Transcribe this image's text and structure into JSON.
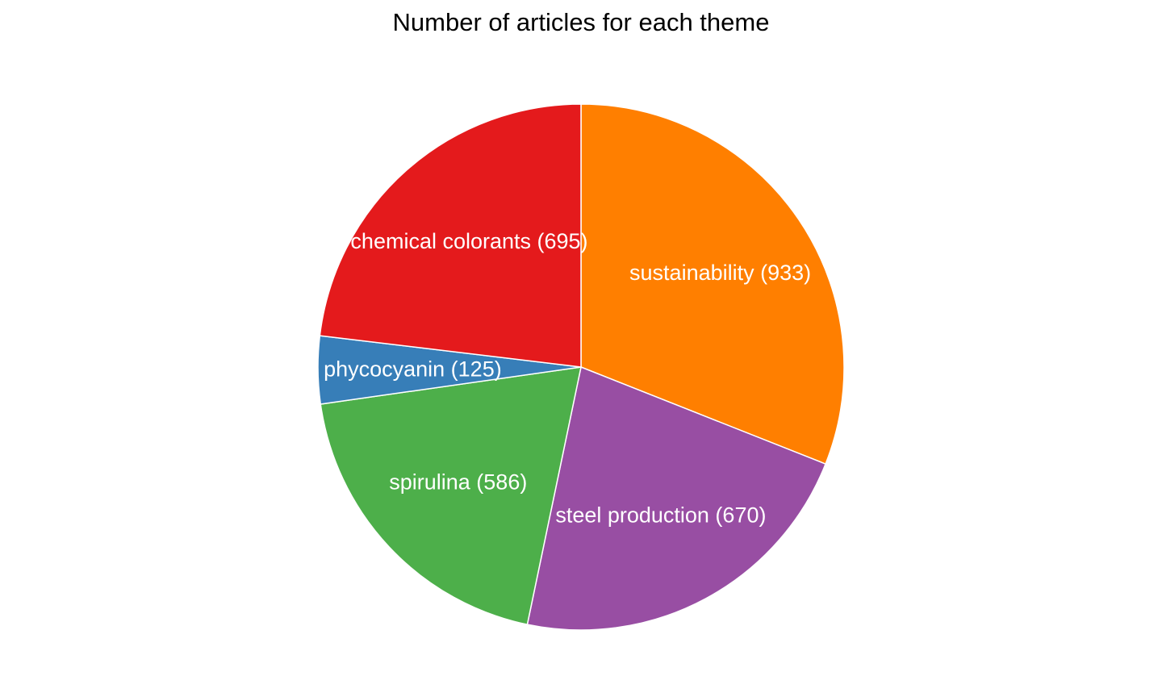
{
  "chart_data": {
    "type": "pie",
    "title": "Number of articles for each theme",
    "slices": [
      {
        "label": "sustainability (933)",
        "name": "sustainability",
        "value": 933,
        "color": "#FF7F00"
      },
      {
        "label": "steel production (670)",
        "name": "steel production",
        "value": 670,
        "color": "#984EA3"
      },
      {
        "label": "spirulina (586)",
        "name": "spirulina",
        "value": 586,
        "color": "#4DAF4A"
      },
      {
        "label": "phycocyanin (125)",
        "name": "phycocyanin",
        "value": 125,
        "color": "#377EB8"
      },
      {
        "label": "chemical colorants (695)",
        "name": "chemical colorants",
        "value": 695,
        "color": "#E41A1C"
      }
    ],
    "start": "12 o'clock",
    "direction": "clockwise",
    "legend": "none"
  }
}
